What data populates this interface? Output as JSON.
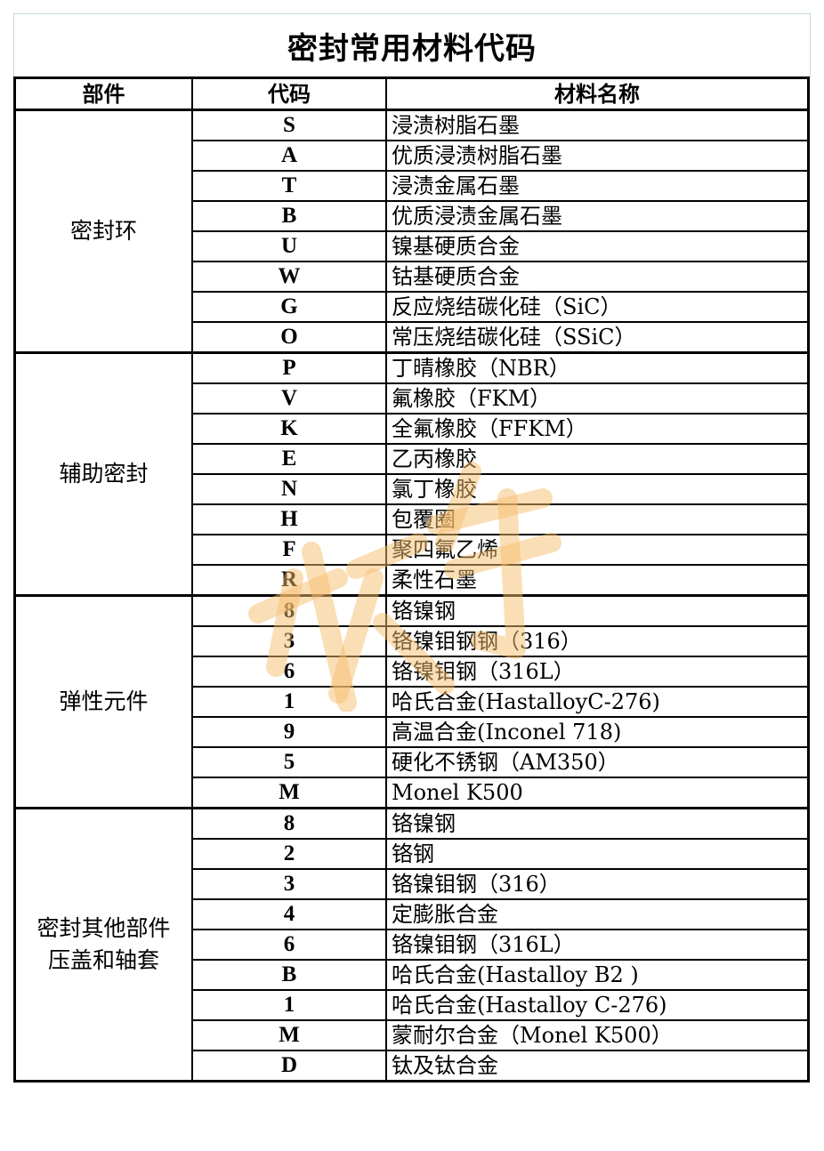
{
  "title": "密封常用材料代码",
  "headers": [
    "部件",
    "代码",
    "材料名称"
  ],
  "watermark": "旅行",
  "groups": [
    {
      "part": [
        "密封环"
      ],
      "rows": [
        [
          "S",
          "浸渍树脂石墨"
        ],
        [
          "A",
          "优质浸渍树脂石墨"
        ],
        [
          "T",
          "浸渍金属石墨"
        ],
        [
          "B",
          "优质浸渍金属石墨"
        ],
        [
          "U",
          "镍基硬质合金"
        ],
        [
          "W",
          "钴基硬质合金"
        ],
        [
          "G",
          "反应烧结碳化硅（SiC）"
        ],
        [
          "O",
          "常压烧结碳化硅（SSiC）"
        ]
      ]
    },
    {
      "part": [
        "辅助密封"
      ],
      "rows": [
        [
          "P",
          "丁晴橡胶（NBR）"
        ],
        [
          "V",
          "氟橡胶（FKM）"
        ],
        [
          "K",
          "全氟橡胶（FFKM）"
        ],
        [
          "E",
          "乙丙橡胶"
        ],
        [
          "N",
          "氯丁橡胶"
        ],
        [
          "H",
          "包覆圈"
        ],
        [
          "F",
          "聚四氟乙烯"
        ],
        [
          "R",
          "柔性石墨"
        ]
      ]
    },
    {
      "part": [
        "弹性元件"
      ],
      "rows": [
        [
          "8",
          "铬镍钢"
        ],
        [
          "3",
          "铬镍钼钢钢（316）"
        ],
        [
          "6",
          "铬镍钼钢（316L）"
        ],
        [
          "1",
          "哈氏合金(HastalloyC-276)"
        ],
        [
          "9",
          "高温合金(Inconel 718)"
        ],
        [
          "5",
          "硬化不锈钢（AM350）"
        ],
        [
          "M",
          "Monel K500"
        ]
      ]
    },
    {
      "part": [
        "密封其他部件",
        "压盖和轴套"
      ],
      "rows": [
        [
          "8",
          "铬镍钢"
        ],
        [
          "2",
          "铬钢"
        ],
        [
          "3",
          "铬镍钼钢（316）"
        ],
        [
          "4",
          "定膨胀合金"
        ],
        [
          "6",
          "铬镍钼钢（316L）"
        ],
        [
          "B",
          "哈氏合金(Hastalloy B2 )"
        ],
        [
          "1",
          "哈氏合金(Hastalloy C-276)"
        ],
        [
          "M",
          "蒙耐尔合金（Monel K500）"
        ],
        [
          "D",
          "钛及钛合金"
        ]
      ]
    }
  ]
}
